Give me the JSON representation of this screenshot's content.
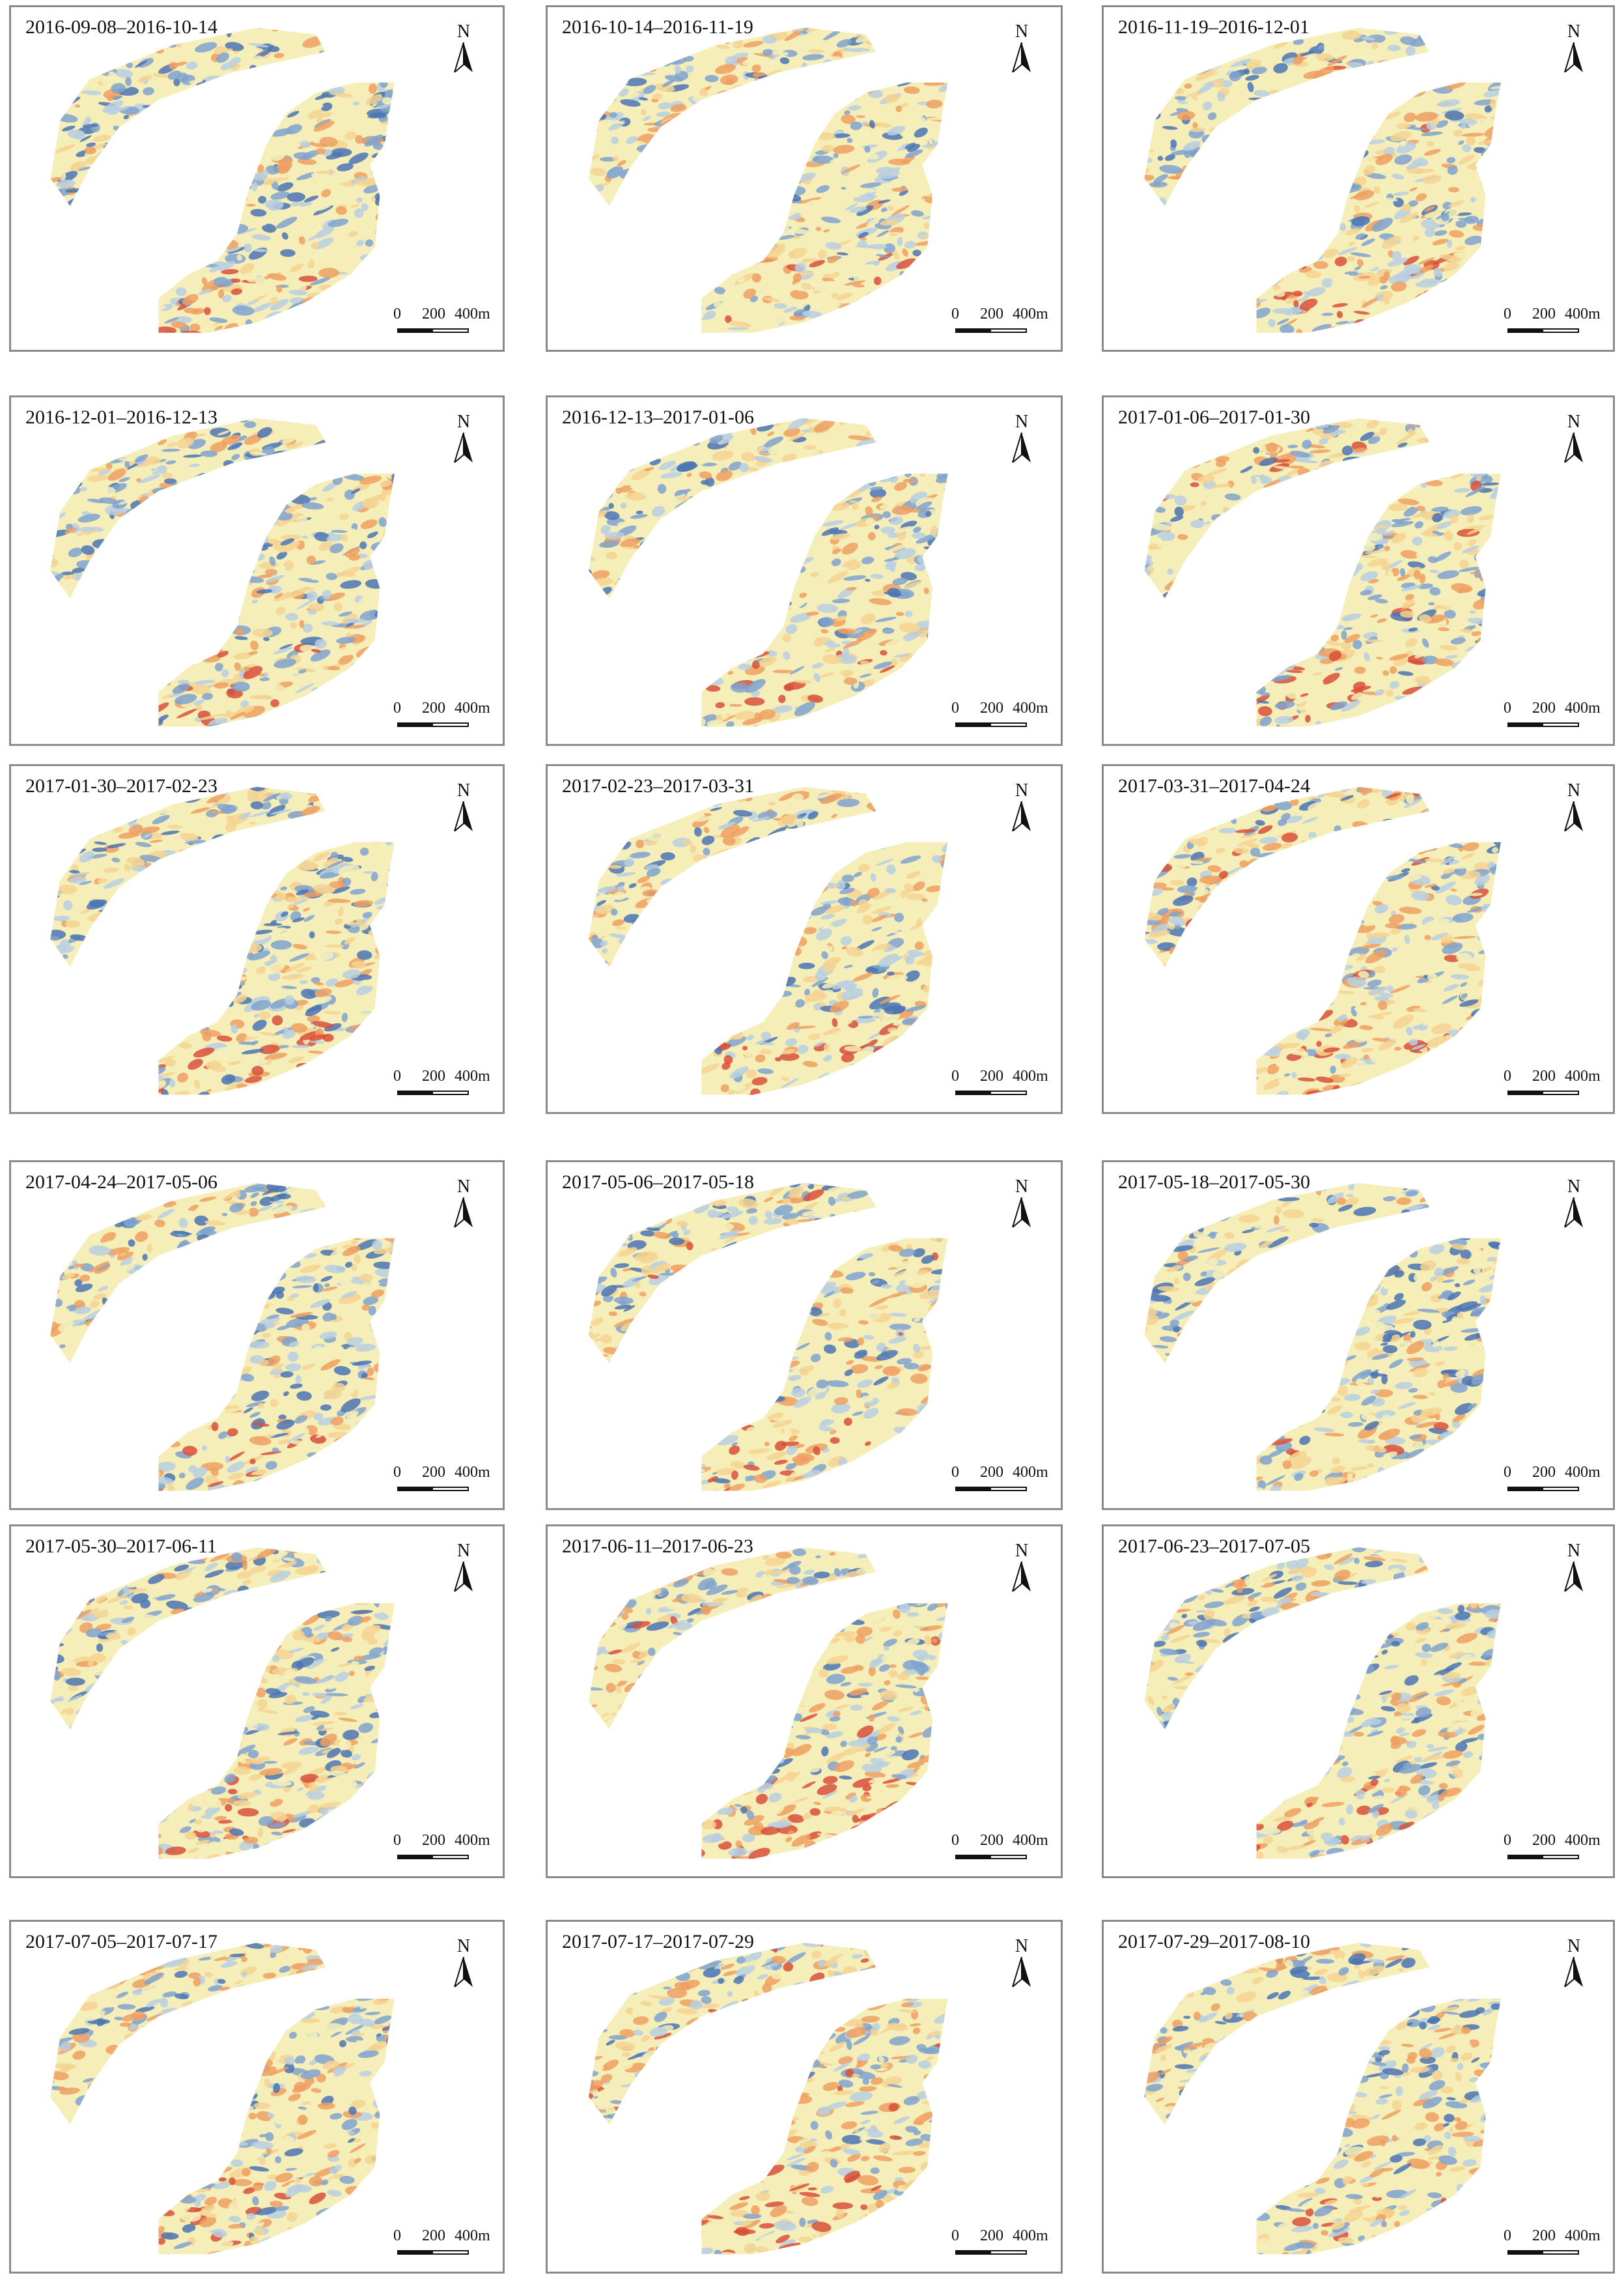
{
  "panels": [
    {
      "title": "2016-09-08–2016-10-14"
    },
    {
      "title": "2016-10-14–2016-11-19"
    },
    {
      "title": "2016-11-19–2016-12-01"
    },
    {
      "title": "2016-12-01–2016-12-13"
    },
    {
      "title": "2016-12-13–2017-01-06"
    },
    {
      "title": "2017-01-06–2017-01-30"
    },
    {
      "title": "2017-01-30–2017-02-23"
    },
    {
      "title": "2017-02-23–2017-03-31"
    },
    {
      "title": "2017-03-31–2017-04-24"
    },
    {
      "title": "2017-04-24–2017-05-06"
    },
    {
      "title": "2017-05-06–2017-05-18"
    },
    {
      "title": "2017-05-18–2017-05-30"
    },
    {
      "title": "2017-05-30–2017-06-11"
    },
    {
      "title": "2017-06-11–2017-06-23"
    },
    {
      "title": "2017-06-23–2017-07-05"
    },
    {
      "title": "2017-07-05–2017-07-17"
    },
    {
      "title": "2017-07-17–2017-07-29"
    },
    {
      "title": "2017-07-29–2017-08-10"
    }
  ],
  "north_arrow": {
    "label": "N"
  },
  "scale_bar": {
    "zero": "0",
    "mid": "200",
    "end": "400m"
  },
  "palette": [
    "#4a74b4",
    "#7fa3cf",
    "#b9cfe0",
    "#f5eeb8",
    "#f4d291",
    "#ef9f62",
    "#d8503a"
  ],
  "background": "#ffffff"
}
